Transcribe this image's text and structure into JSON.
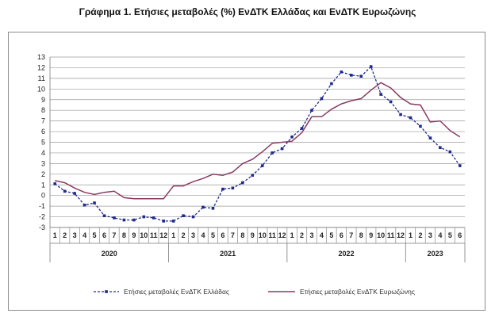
{
  "title": "Γράφημα 1. Ετήσιες μεταβολές (%) ΕνΔΤΚ Ελλάδας και ΕνΔΤΚ Ευρωζώνης",
  "chart_data": {
    "type": "line",
    "ylim": [
      -3,
      13
    ],
    "yticks": [
      -3,
      -2,
      -1,
      0,
      1,
      2,
      3,
      4,
      5,
      6,
      7,
      8,
      9,
      10,
      11,
      12,
      13
    ],
    "grid": true,
    "legend_position": "bottom",
    "months": [
      "1",
      "2",
      "3",
      "4",
      "5",
      "6",
      "7",
      "8",
      "9",
      "10",
      "11",
      "12",
      "1",
      "2",
      "3",
      "4",
      "5",
      "6",
      "7",
      "8",
      "9",
      "10",
      "11",
      "12",
      "1",
      "2",
      "3",
      "4",
      "5",
      "6",
      "7",
      "8",
      "9",
      "10",
      "11",
      "12",
      "1",
      "2",
      "3",
      "4",
      "5",
      "6"
    ],
    "years": [
      {
        "label": "2020",
        "count": 12
      },
      {
        "label": "2021",
        "count": 12
      },
      {
        "label": "2022",
        "count": 12
      },
      {
        "label": "2023",
        "count": 6
      }
    ],
    "series": [
      {
        "name": "Ετήσιες μεταβολές ΕνΔΤΚ Ελλάδας",
        "color": "#1f2a8c",
        "style": "dashed-markers",
        "values": [
          1.1,
          0.4,
          0.2,
          -0.9,
          -0.7,
          -1.9,
          -2.1,
          -2.3,
          -2.3,
          -2.0,
          -2.1,
          -2.4,
          -2.4,
          -1.9,
          -2.0,
          -1.1,
          -1.2,
          0.6,
          0.7,
          1.2,
          1.9,
          2.8,
          4.0,
          4.4,
          5.5,
          6.3,
          8.0,
          9.1,
          10.5,
          11.6,
          11.3,
          11.2,
          12.1,
          9.5,
          8.8,
          7.6,
          7.3,
          6.5,
          5.4,
          4.5,
          4.1,
          2.8
        ]
      },
      {
        "name": "Ετήσιες μεταβολές ΕνΔΤΚ Ευρωζώνης",
        "color": "#8b3a62",
        "style": "solid",
        "values": [
          1.4,
          1.2,
          0.7,
          0.3,
          0.1,
          0.3,
          0.4,
          -0.2,
          -0.3,
          -0.3,
          -0.3,
          -0.3,
          0.9,
          0.9,
          1.3,
          1.6,
          2.0,
          1.9,
          2.2,
          3.0,
          3.4,
          4.1,
          4.9,
          5.0,
          5.1,
          5.9,
          7.4,
          7.4,
          8.1,
          8.6,
          8.9,
          9.1,
          9.9,
          10.6,
          10.1,
          9.2,
          8.6,
          8.5,
          6.9,
          7.0,
          6.1,
          5.5
        ]
      }
    ]
  }
}
